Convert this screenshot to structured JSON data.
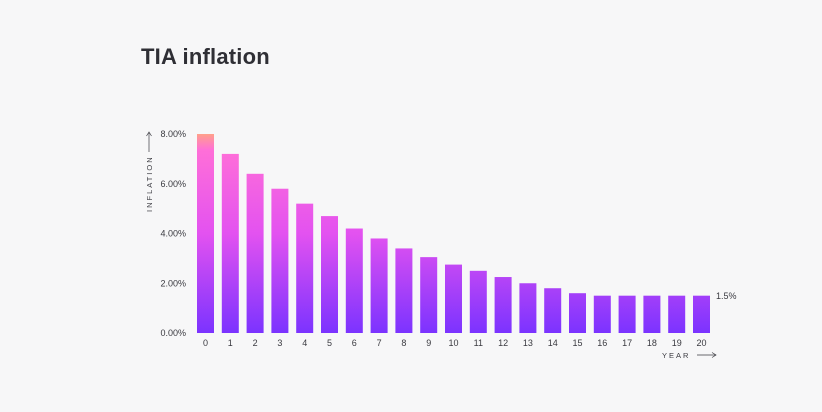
{
  "chart_data": {
    "type": "bar",
    "title": "TIA inflation",
    "xlabel": "YEAR",
    "ylabel": "INFLATION",
    "categories": [
      "0",
      "1",
      "2",
      "3",
      "4",
      "5",
      "6",
      "7",
      "8",
      "9",
      "10",
      "11",
      "12",
      "13",
      "14",
      "15",
      "16",
      "17",
      "18",
      "19",
      "20"
    ],
    "values": [
      8.0,
      7.2,
      6.4,
      5.8,
      5.2,
      4.7,
      4.2,
      3.8,
      3.4,
      3.05,
      2.75,
      2.5,
      2.25,
      2.0,
      1.8,
      1.6,
      1.5,
      1.5,
      1.5,
      1.5,
      1.5
    ],
    "ylim": [
      0,
      8
    ],
    "yticks": [
      "0.00%",
      "2.00%",
      "4.00%",
      "6.00%",
      "8.00%"
    ],
    "annotation": "1.5%",
    "colors": {
      "top": "#ffa08a",
      "upper": "#ff6fd8",
      "mid": "#e352f0",
      "bottom": "#7b33ff"
    }
  }
}
